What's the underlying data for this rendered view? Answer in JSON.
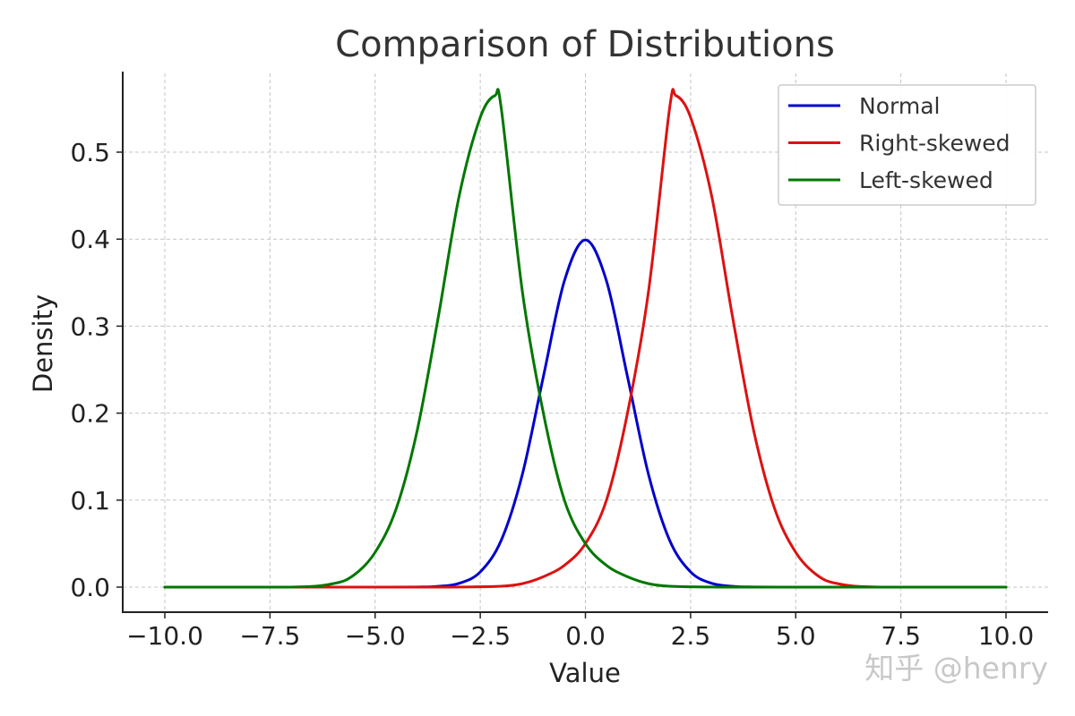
{
  "chart_data": {
    "type": "line",
    "title": "Comparison of Distributions",
    "xlabel": "Value",
    "ylabel": "Density",
    "xlim": [
      -10,
      10
    ],
    "ylim": [
      -0.03,
      0.6
    ],
    "xticks": [
      -10,
      -7.5,
      -5,
      -2.5,
      0,
      2.5,
      5,
      7.5,
      10
    ],
    "xtick_labels": [
      "−10.0",
      "−7.5",
      "−5.0",
      "−2.5",
      "0.0",
      "2.5",
      "5.0",
      "7.5",
      "10.0"
    ],
    "yticks": [
      0,
      0.1,
      0.2,
      0.3,
      0.4,
      0.5
    ],
    "ytick_labels": [
      "0.0",
      "0.1",
      "0.2",
      "0.3",
      "0.4",
      "0.5"
    ],
    "grid": true,
    "legend_position": "top-right",
    "series": [
      {
        "name": "Normal",
        "color": "#0000cc",
        "x": [
          -10,
          -6,
          -5,
          -4,
          -3.5,
          -3,
          -2.5,
          -2,
          -1.5,
          -1,
          -0.5,
          0,
          0.5,
          1,
          1.5,
          2,
          2.5,
          3,
          3.5,
          4,
          5,
          6,
          10
        ],
        "y": [
          0,
          0,
          1.5e-06,
          0.00013,
          0.00087,
          0.0044,
          0.0175,
          0.054,
          0.1295,
          0.242,
          0.352,
          0.399,
          0.352,
          0.242,
          0.1295,
          0.054,
          0.0175,
          0.0044,
          0.00087,
          0.00013,
          1.5e-06,
          0,
          0
        ]
      },
      {
        "name": "Right-skewed",
        "color": "#dd1111",
        "x": [
          -10,
          -4,
          -3,
          -2,
          -1.5,
          -1,
          -0.5,
          0,
          0.5,
          1,
          1.5,
          2,
          2.15,
          2.5,
          3,
          3.5,
          4,
          4.5,
          5,
          5.5,
          6,
          7,
          10
        ],
        "y": [
          0,
          0,
          0.0001,
          0.001,
          0.004,
          0.012,
          0.025,
          0.05,
          0.1,
          0.2,
          0.34,
          0.55,
          0.565,
          0.54,
          0.45,
          0.31,
          0.18,
          0.09,
          0.04,
          0.014,
          0.004,
          0,
          0
        ]
      },
      {
        "name": "Left-skewed",
        "color": "#007700",
        "x": [
          -10,
          -7,
          -6,
          -5.5,
          -5,
          -4.5,
          -4,
          -3.5,
          -3,
          -2.5,
          -2.15,
          -2,
          -1.5,
          -1,
          -0.5,
          0,
          0.5,
          1,
          1.5,
          2,
          3,
          4,
          10
        ],
        "y": [
          0,
          0,
          0.004,
          0.014,
          0.04,
          0.09,
          0.18,
          0.31,
          0.45,
          0.54,
          0.565,
          0.55,
          0.34,
          0.2,
          0.1,
          0.05,
          0.025,
          0.012,
          0.004,
          0.001,
          0.0001,
          0,
          0
        ]
      }
    ],
    "watermark": "知乎 @henry"
  }
}
